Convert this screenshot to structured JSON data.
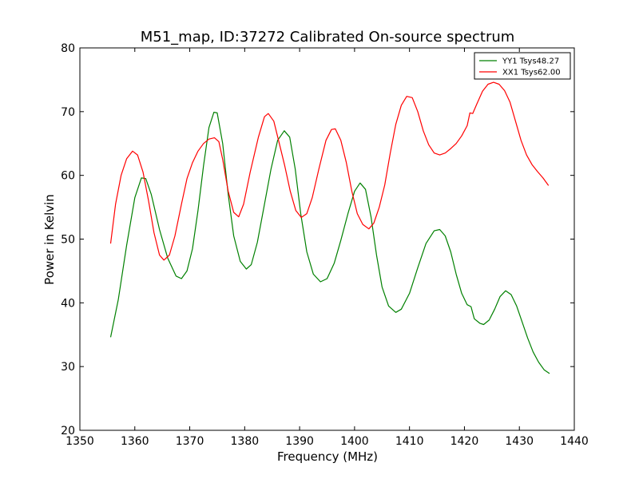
{
  "chart_data": {
    "type": "line",
    "title": "M51_map, ID:37272 Calibrated On-source spectrum",
    "xlabel": "Frequency (MHz)",
    "ylabel": "Power in Kelvin",
    "xlim": [
      1350,
      1440
    ],
    "ylim": [
      20,
      80
    ],
    "xticks": [
      1350,
      1360,
      1370,
      1380,
      1390,
      1400,
      1410,
      1420,
      1430,
      1440
    ],
    "yticks": [
      20,
      30,
      40,
      50,
      60,
      70,
      80
    ],
    "grid": false,
    "legend_position": "top-right",
    "series": [
      {
        "name": "YY1 Tsys48.27",
        "color": "#008000",
        "points": [
          [
            1355.6,
            34.6
          ],
          [
            1357.0,
            40.5
          ],
          [
            1358.5,
            49.0
          ],
          [
            1360.0,
            56.5
          ],
          [
            1361.2,
            59.6
          ],
          [
            1362.0,
            59.5
          ],
          [
            1363.0,
            57.0
          ],
          [
            1364.5,
            51.5
          ],
          [
            1366.0,
            47.0
          ],
          [
            1367.5,
            44.2
          ],
          [
            1368.5,
            43.8
          ],
          [
            1369.5,
            45.0
          ],
          [
            1370.5,
            48.5
          ],
          [
            1371.5,
            54.5
          ],
          [
            1372.5,
            61.5
          ],
          [
            1373.5,
            67.5
          ],
          [
            1374.4,
            69.9
          ],
          [
            1375.0,
            69.8
          ],
          [
            1376.0,
            65.0
          ],
          [
            1377.0,
            57.0
          ],
          [
            1378.0,
            50.5
          ],
          [
            1379.2,
            46.5
          ],
          [
            1380.3,
            45.3
          ],
          [
            1381.2,
            46.0
          ],
          [
            1382.3,
            49.5
          ],
          [
            1383.5,
            55.0
          ],
          [
            1384.8,
            61.0
          ],
          [
            1386.0,
            65.5
          ],
          [
            1387.2,
            67.0
          ],
          [
            1388.2,
            66.0
          ],
          [
            1389.2,
            61.0
          ],
          [
            1390.2,
            54.0
          ],
          [
            1391.3,
            48.0
          ],
          [
            1392.5,
            44.5
          ],
          [
            1393.8,
            43.3
          ],
          [
            1395.0,
            43.8
          ],
          [
            1396.3,
            46.2
          ],
          [
            1397.5,
            49.8
          ],
          [
            1398.8,
            54.0
          ],
          [
            1400.0,
            57.5
          ],
          [
            1401.0,
            58.8
          ],
          [
            1402.0,
            57.8
          ],
          [
            1403.0,
            53.5
          ],
          [
            1404.0,
            47.5
          ],
          [
            1405.0,
            42.5
          ],
          [
            1406.2,
            39.5
          ],
          [
            1407.5,
            38.5
          ],
          [
            1408.5,
            39.0
          ],
          [
            1410.0,
            41.5
          ],
          [
            1411.5,
            45.5
          ],
          [
            1413.0,
            49.3
          ],
          [
            1414.5,
            51.3
          ],
          [
            1415.5,
            51.5
          ],
          [
            1416.5,
            50.5
          ],
          [
            1417.5,
            48.0
          ],
          [
            1418.5,
            44.5
          ],
          [
            1419.5,
            41.5
          ],
          [
            1420.5,
            39.7
          ],
          [
            1421.2,
            39.4
          ],
          [
            1421.8,
            37.5
          ],
          [
            1422.8,
            36.8
          ],
          [
            1423.5,
            36.6
          ],
          [
            1424.5,
            37.3
          ],
          [
            1425.5,
            39.0
          ],
          [
            1426.5,
            41.0
          ],
          [
            1427.5,
            41.9
          ],
          [
            1428.5,
            41.3
          ],
          [
            1429.5,
            39.5
          ],
          [
            1430.5,
            37.0
          ],
          [
            1431.5,
            34.5
          ],
          [
            1432.5,
            32.3
          ],
          [
            1433.5,
            30.7
          ],
          [
            1434.5,
            29.5
          ],
          [
            1435.5,
            28.9
          ]
        ]
      },
      {
        "name": "XX1 Tsys62.00",
        "color": "#ff0000",
        "points": [
          [
            1355.6,
            49.3
          ],
          [
            1356.5,
            55.5
          ],
          [
            1357.5,
            60.0
          ],
          [
            1358.5,
            62.6
          ],
          [
            1359.6,
            63.8
          ],
          [
            1360.5,
            63.2
          ],
          [
            1361.5,
            60.5
          ],
          [
            1362.5,
            56.0
          ],
          [
            1363.5,
            51.0
          ],
          [
            1364.5,
            47.5
          ],
          [
            1365.3,
            46.7
          ],
          [
            1366.3,
            47.5
          ],
          [
            1367.3,
            50.5
          ],
          [
            1368.5,
            55.5
          ],
          [
            1369.5,
            59.5
          ],
          [
            1370.5,
            62.0
          ],
          [
            1371.5,
            63.8
          ],
          [
            1372.5,
            65.0
          ],
          [
            1373.5,
            65.7
          ],
          [
            1374.5,
            65.9
          ],
          [
            1375.3,
            65.3
          ],
          [
            1376.0,
            62.5
          ],
          [
            1377.0,
            57.5
          ],
          [
            1378.0,
            54.2
          ],
          [
            1378.9,
            53.5
          ],
          [
            1379.8,
            55.5
          ],
          [
            1381.0,
            60.5
          ],
          [
            1382.5,
            66.0
          ],
          [
            1383.6,
            69.2
          ],
          [
            1384.3,
            69.7
          ],
          [
            1385.3,
            68.5
          ],
          [
            1386.3,
            65.0
          ],
          [
            1387.3,
            61.5
          ],
          [
            1388.3,
            57.5
          ],
          [
            1389.3,
            54.5
          ],
          [
            1390.3,
            53.4
          ],
          [
            1391.3,
            54.0
          ],
          [
            1392.3,
            56.5
          ],
          [
            1393.5,
            61.0
          ],
          [
            1394.8,
            65.5
          ],
          [
            1395.8,
            67.2
          ],
          [
            1396.5,
            67.3
          ],
          [
            1397.5,
            65.5
          ],
          [
            1398.5,
            62.0
          ],
          [
            1399.5,
            57.5
          ],
          [
            1400.5,
            54.0
          ],
          [
            1401.5,
            52.3
          ],
          [
            1402.6,
            51.6
          ],
          [
            1403.5,
            52.5
          ],
          [
            1404.5,
            55.0
          ],
          [
            1405.5,
            58.5
          ],
          [
            1406.5,
            63.5
          ],
          [
            1407.5,
            68.0
          ],
          [
            1408.5,
            71.0
          ],
          [
            1409.5,
            72.4
          ],
          [
            1410.5,
            72.2
          ],
          [
            1411.5,
            70.0
          ],
          [
            1412.5,
            67.0
          ],
          [
            1413.5,
            64.8
          ],
          [
            1414.5,
            63.5
          ],
          [
            1415.5,
            63.2
          ],
          [
            1416.5,
            63.5
          ],
          [
            1417.5,
            64.2
          ],
          [
            1418.5,
            65.0
          ],
          [
            1419.5,
            66.2
          ],
          [
            1420.5,
            67.8
          ],
          [
            1421.0,
            69.8
          ],
          [
            1421.5,
            69.7
          ],
          [
            1422.3,
            71.3
          ],
          [
            1423.3,
            73.2
          ],
          [
            1424.3,
            74.3
          ],
          [
            1425.3,
            74.6
          ],
          [
            1426.3,
            74.3
          ],
          [
            1427.3,
            73.3
          ],
          [
            1428.3,
            71.5
          ],
          [
            1429.3,
            68.5
          ],
          [
            1430.3,
            65.5
          ],
          [
            1431.3,
            63.2
          ],
          [
            1432.3,
            61.7
          ],
          [
            1433.3,
            60.6
          ],
          [
            1434.3,
            59.6
          ],
          [
            1435.3,
            58.4
          ]
        ]
      }
    ]
  }
}
